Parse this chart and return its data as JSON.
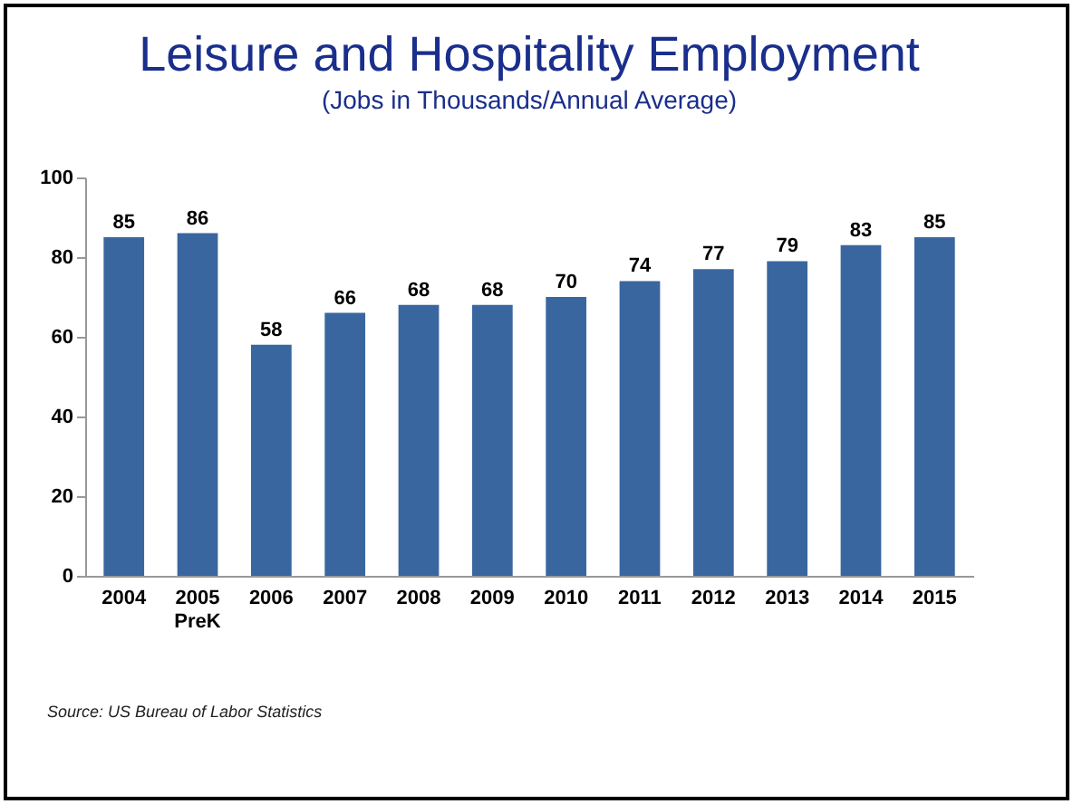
{
  "chart_data": {
    "type": "bar",
    "title": "Leisure and Hospitality Employment",
    "subtitle": "(Jobs in Thousands/Annual Average)",
    "categories": [
      "2004",
      "2005\nPreK",
      "2006",
      "2007",
      "2008",
      "2009",
      "2010",
      "2011",
      "2012",
      "2013",
      "2014",
      "2015"
    ],
    "values": [
      85,
      86,
      58,
      66,
      68,
      68,
      70,
      74,
      77,
      79,
      83,
      85
    ],
    "color": "#3a66a0",
    "ylim": [
      0,
      100
    ],
    "yticks": [
      0,
      20,
      40,
      60,
      80,
      100
    ],
    "grid": false,
    "data_labels": true,
    "annotations": [
      "Source: US Bureau of Labor Statistics"
    ]
  }
}
